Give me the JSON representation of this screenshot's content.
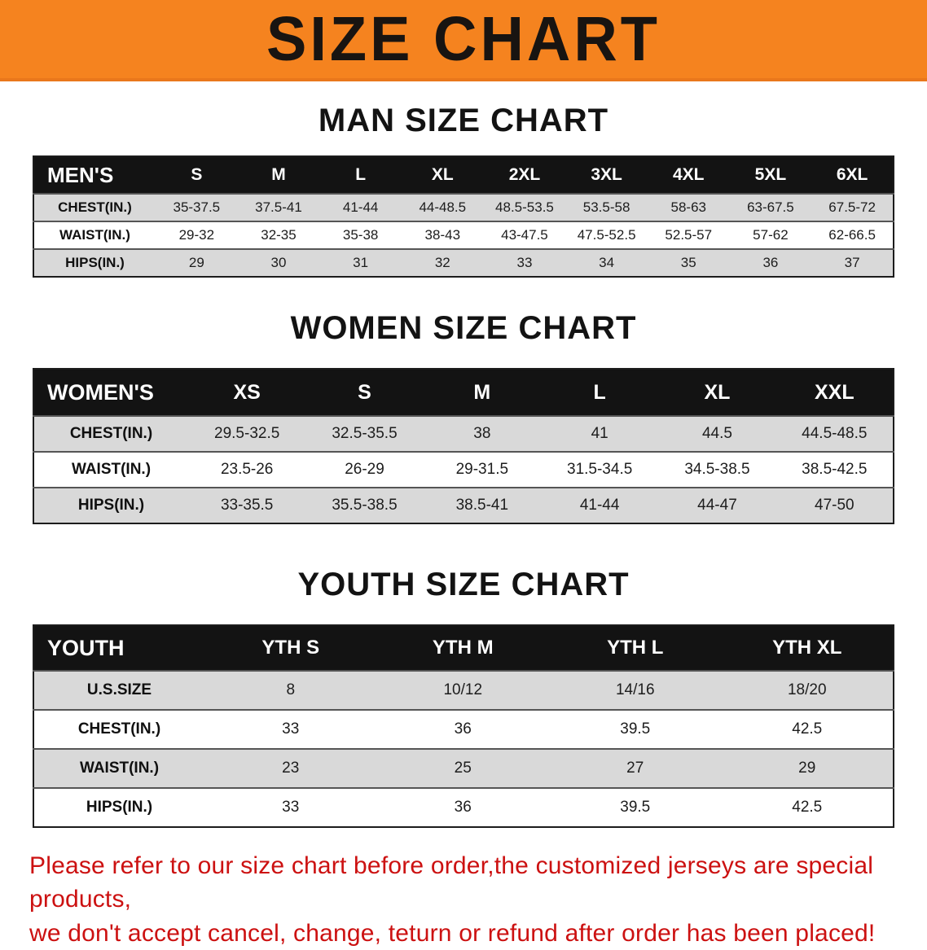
{
  "banner": {
    "title": "SIZE CHART",
    "background_color": "#f5831f",
    "text_color": "#181411"
  },
  "sections": [
    {
      "heading": "MAN SIZE CHART",
      "table": {
        "header": [
          "MEN'S",
          "S",
          "M",
          "L",
          "XL",
          "2XL",
          "3XL",
          "4XL",
          "5XL",
          "6XL"
        ],
        "rows": [
          {
            "label": "CHEST(IN.)",
            "values": [
              "35-37.5",
              "37.5-41",
              "41-44",
              "44-48.5",
              "48.5-53.5",
              "53.5-58",
              "58-63",
              "63-67.5",
              "67.5-72"
            ]
          },
          {
            "label": "WAIST(IN.)",
            "values": [
              "29-32",
              "32-35",
              "35-38",
              "38-43",
              "43-47.5",
              "47.5-52.5",
              "52.5-57",
              "57-62",
              "62-66.5"
            ]
          },
          {
            "label": "HIPS(IN.)",
            "values": [
              "29",
              "30",
              "31",
              "32",
              "33",
              "34",
              "35",
              "36",
              "37"
            ]
          }
        ]
      }
    },
    {
      "heading": "WOMEN SIZE CHART",
      "table": {
        "header": [
          "WOMEN'S",
          "XS",
          "S",
          "M",
          "L",
          "XL",
          "XXL"
        ],
        "rows": [
          {
            "label": "CHEST(IN.)",
            "values": [
              "29.5-32.5",
              "32.5-35.5",
              "38",
              "41",
              "44.5",
              "44.5-48.5"
            ]
          },
          {
            "label": "WAIST(IN.)",
            "values": [
              "23.5-26",
              "26-29",
              "29-31.5",
              "31.5-34.5",
              "34.5-38.5",
              "38.5-42.5"
            ]
          },
          {
            "label": "HIPS(IN.)",
            "values": [
              "33-35.5",
              "35.5-38.5",
              "38.5-41",
              "41-44",
              "44-47",
              "47-50"
            ]
          }
        ]
      }
    },
    {
      "heading": "YOUTH SIZE CHART",
      "table": {
        "header": [
          "YOUTH",
          "YTH S",
          "YTH M",
          "YTH L",
          "YTH XL"
        ],
        "rows": [
          {
            "label": "U.S.SIZE",
            "values": [
              "8",
              "10/12",
              "14/16",
              "18/20"
            ]
          },
          {
            "label": "CHEST(IN.)",
            "values": [
              "33",
              "36",
              "39.5",
              "42.5"
            ]
          },
          {
            "label": "WAIST(IN.)",
            "values": [
              "23",
              "25",
              "27",
              "29"
            ]
          },
          {
            "label": "HIPS(IN.)",
            "values": [
              "33",
              "36",
              "39.5",
              "42.5"
            ]
          }
        ]
      }
    }
  ],
  "footer": {
    "line1": "Please refer to our size chart before order,the customized jerseys are special products,",
    "line2": "we don't accept cancel, change, teturn or refund after order has been placed!",
    "text_color": "#cc1111"
  }
}
